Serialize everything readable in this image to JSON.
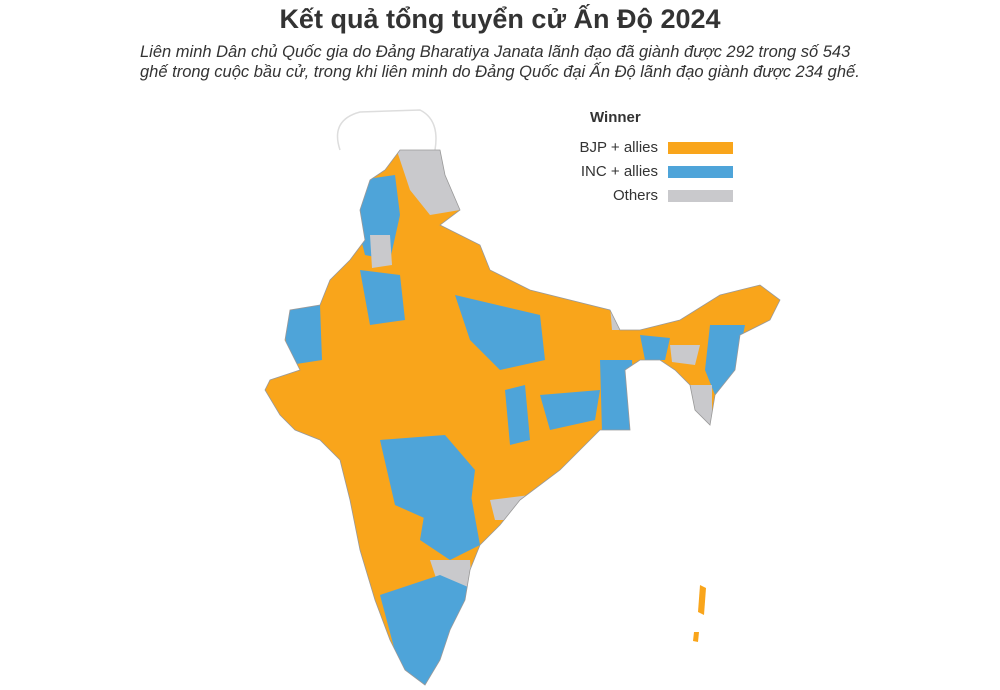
{
  "header": {
    "title": "Kết quả tổng tuyển cử Ấn Độ 2024",
    "subtitle": "Liên minh Dân chủ Quốc gia do Đảng Bharatiya Janata lãnh đạo đã giành được 292 trong số 543 ghế trong cuộc bầu cử, trong khi liên minh do Đảng Quốc đại Ấn Độ lãnh đạo giành được 234 ghế."
  },
  "legend": {
    "title": "Winner",
    "items": [
      {
        "label": "BJP + allies",
        "color": "#f9a51b"
      },
      {
        "label": "INC + allies",
        "color": "#4ea4d9"
      },
      {
        "label": "Others",
        "color": "#c9c9cc"
      }
    ]
  }
}
